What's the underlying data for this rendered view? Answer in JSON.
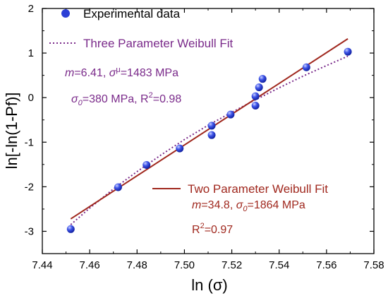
{
  "chart_data": {
    "type": "scatter",
    "xlabel": "ln (σ)",
    "ylabel": "ln[-ln(1-Pf)]",
    "xlim": [
      7.44,
      7.58
    ],
    "ylim": [
      -3.5,
      2
    ],
    "xticks": [
      "7.44",
      "7.46",
      "7.48",
      "7.50",
      "7.52",
      "7.54",
      "7.56",
      "7.58"
    ],
    "yticks": [
      "2",
      "1",
      "0",
      "-1",
      "-2",
      "-3"
    ],
    "series": [
      {
        "name": "Experimental data",
        "kind": "points",
        "color": "#2b3fd6",
        "points": [
          [
            7.452,
            -2.95
          ],
          [
            7.472,
            -2.01
          ],
          [
            7.484,
            -1.51
          ],
          [
            7.498,
            -1.14
          ],
          [
            7.5115,
            -0.84
          ],
          [
            7.5115,
            -0.63
          ],
          [
            7.5195,
            -0.38
          ],
          [
            7.53,
            -0.18
          ],
          [
            7.53,
            0.03
          ],
          [
            7.5315,
            0.23
          ],
          [
            7.533,
            0.42
          ],
          [
            7.5515,
            0.68
          ],
          [
            7.569,
            1.03
          ]
        ]
      },
      {
        "name": "Three Parameter Weibull Fit",
        "kind": "line",
        "style": "dotted",
        "color": "#7a2a8a",
        "points": [
          [
            7.452,
            -2.85
          ],
          [
            7.46,
            -2.48
          ],
          [
            7.47,
            -2.05
          ],
          [
            7.48,
            -1.66
          ],
          [
            7.49,
            -1.29
          ],
          [
            7.5,
            -0.94
          ],
          [
            7.51,
            -0.62
          ],
          [
            7.52,
            -0.33
          ],
          [
            7.53,
            -0.05
          ],
          [
            7.54,
            0.22
          ],
          [
            7.55,
            0.48
          ],
          [
            7.56,
            0.72
          ],
          [
            7.569,
            0.93
          ]
        ]
      },
      {
        "name": "Two Parameter Weibull Fit",
        "kind": "line",
        "style": "solid",
        "color": "#a0281e",
        "points": [
          [
            7.452,
            -2.72
          ],
          [
            7.569,
            1.32
          ]
        ]
      }
    ],
    "legend_placement": "top-left",
    "annotations": {
      "three_param": {
        "color": "#7a2a8a",
        "line1": {
          "m_sym": "m",
          "m_val": "=6.41, ",
          "sigma_sym": "σ",
          "sigma_sub": "μ",
          "sigma_val": "=1483 MPa"
        },
        "line2": {
          "sigma_sym": "σ",
          "sigma_sub": "0",
          "rest": "=380 MPa, R",
          "sup": "2",
          "tail": "=0.98"
        }
      },
      "two_param": {
        "color": "#a0281e",
        "line1": {
          "m_sym": "m",
          "m_val": "=34.8,  ",
          "sigma_sym": "σ",
          "sigma_sub": "0",
          "sigma_val": "=1864 MPa"
        },
        "line2": {
          "r": "R",
          "sup": "2",
          "tail": "=0.97"
        }
      }
    },
    "grid": false
  }
}
